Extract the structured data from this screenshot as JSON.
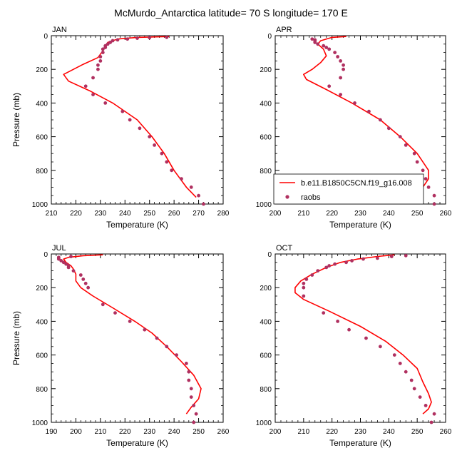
{
  "figure": {
    "title": "McMurdo_Antarctica  latitude= 70 S longitude= 170 E"
  },
  "legend": {
    "model_label": "b.e11.B1850C5CN.f19_g16.008",
    "obs_label": "raobs",
    "model_color": "#ff0000",
    "obs_color": "#b03060"
  },
  "chart_data": [
    {
      "type": "line",
      "panel": "JAN",
      "xlabel": "Temperature (K)",
      "ylabel": "Pressure (mb)",
      "xlim": [
        210,
        280
      ],
      "ylim": [
        1000,
        0
      ],
      "xticks": [
        210,
        220,
        230,
        240,
        250,
        260,
        270,
        280
      ],
      "yticks": [
        0,
        200,
        400,
        600,
        800,
        1000
      ],
      "series": [
        {
          "kind": "model",
          "points": [
            {
              "x": 258,
              "y": 5
            },
            {
              "x": 245,
              "y": 10
            },
            {
              "x": 237,
              "y": 20
            },
            {
              "x": 233,
              "y": 40
            },
            {
              "x": 232,
              "y": 60
            },
            {
              "x": 231,
              "y": 90
            },
            {
              "x": 229,
              "y": 130
            },
            {
              "x": 223,
              "y": 170
            },
            {
              "x": 219,
              "y": 200
            },
            {
              "x": 215,
              "y": 230
            },
            {
              "x": 217,
              "y": 270
            },
            {
              "x": 226,
              "y": 330
            },
            {
              "x": 235,
              "y": 400
            },
            {
              "x": 245,
              "y": 500
            },
            {
              "x": 251,
              "y": 600
            },
            {
              "x": 256,
              "y": 700
            },
            {
              "x": 260,
              "y": 800
            },
            {
              "x": 265,
              "y": 900
            },
            {
              "x": 269,
              "y": 960
            }
          ]
        },
        {
          "kind": "obs",
          "points": [
            {
              "x": 257,
              "y": 10
            },
            {
              "x": 250,
              "y": 12
            },
            {
              "x": 245,
              "y": 15
            },
            {
              "x": 241,
              "y": 20
            },
            {
              "x": 237,
              "y": 25
            },
            {
              "x": 235,
              "y": 30
            },
            {
              "x": 234,
              "y": 40
            },
            {
              "x": 233,
              "y": 50
            },
            {
              "x": 232,
              "y": 60
            },
            {
              "x": 232,
              "y": 70
            },
            {
              "x": 231,
              "y": 80
            },
            {
              "x": 231,
              "y": 100
            },
            {
              "x": 230,
              "y": 125
            },
            {
              "x": 230,
              "y": 150
            },
            {
              "x": 229,
              "y": 175
            },
            {
              "x": 229,
              "y": 200
            },
            {
              "x": 227,
              "y": 250
            },
            {
              "x": 224,
              "y": 300
            },
            {
              "x": 227,
              "y": 350
            },
            {
              "x": 232,
              "y": 400
            },
            {
              "x": 239,
              "y": 450
            },
            {
              "x": 242,
              "y": 500
            },
            {
              "x": 246,
              "y": 550
            },
            {
              "x": 250,
              "y": 600
            },
            {
              "x": 252,
              "y": 650
            },
            {
              "x": 255,
              "y": 700
            },
            {
              "x": 257,
              "y": 750
            },
            {
              "x": 259,
              "y": 800
            },
            {
              "x": 263,
              "y": 850
            },
            {
              "x": 267,
              "y": 900
            },
            {
              "x": 270,
              "y": 950
            },
            {
              "x": 272,
              "y": 1000
            }
          ]
        }
      ]
    },
    {
      "type": "line",
      "panel": "APR",
      "xlabel": "Temperature (K)",
      "ylabel": "",
      "xlim": [
        200,
        260
      ],
      "ylim": [
        1000,
        0
      ],
      "xticks": [
        200,
        210,
        220,
        230,
        240,
        250,
        260
      ],
      "yticks": [
        0,
        200,
        400,
        600,
        800,
        1000
      ],
      "series": [
        {
          "kind": "model",
          "points": [
            {
              "x": 225,
              "y": 5
            },
            {
              "x": 220,
              "y": 10
            },
            {
              "x": 216,
              "y": 30
            },
            {
              "x": 215,
              "y": 50
            },
            {
              "x": 217,
              "y": 80
            },
            {
              "x": 218,
              "y": 120
            },
            {
              "x": 216,
              "y": 160
            },
            {
              "x": 213,
              "y": 200
            },
            {
              "x": 210,
              "y": 230
            },
            {
              "x": 211,
              "y": 260
            },
            {
              "x": 218,
              "y": 320
            },
            {
              "x": 227,
              "y": 400
            },
            {
              "x": 237,
              "y": 500
            },
            {
              "x": 244,
              "y": 600
            },
            {
              "x": 250,
              "y": 700
            },
            {
              "x": 254,
              "y": 800
            },
            {
              "x": 254,
              "y": 850
            },
            {
              "x": 252,
              "y": 900
            },
            {
              "x": 248,
              "y": 950
            }
          ]
        },
        {
          "kind": "obs",
          "points": [
            {
              "x": 213,
              "y": 20
            },
            {
              "x": 214,
              "y": 25
            },
            {
              "x": 214,
              "y": 30
            },
            {
              "x": 214,
              "y": 40
            },
            {
              "x": 215,
              "y": 50
            },
            {
              "x": 217,
              "y": 60
            },
            {
              "x": 218,
              "y": 70
            },
            {
              "x": 219,
              "y": 80
            },
            {
              "x": 221,
              "y": 100
            },
            {
              "x": 222,
              "y": 125
            },
            {
              "x": 223,
              "y": 150
            },
            {
              "x": 224,
              "y": 175
            },
            {
              "x": 224,
              "y": 200
            },
            {
              "x": 223,
              "y": 250
            },
            {
              "x": 219,
              "y": 300
            },
            {
              "x": 223,
              "y": 350
            },
            {
              "x": 228,
              "y": 400
            },
            {
              "x": 233,
              "y": 450
            },
            {
              "x": 237,
              "y": 500
            },
            {
              "x": 240,
              "y": 550
            },
            {
              "x": 244,
              "y": 600
            },
            {
              "x": 246,
              "y": 650
            },
            {
              "x": 249,
              "y": 700
            },
            {
              "x": 250,
              "y": 750
            },
            {
              "x": 252,
              "y": 800
            },
            {
              "x": 253,
              "y": 850
            },
            {
              "x": 254,
              "y": 900
            },
            {
              "x": 256,
              "y": 950
            },
            {
              "x": 256,
              "y": 1000
            }
          ]
        }
      ]
    },
    {
      "type": "line",
      "panel": "JUL",
      "xlabel": "Temperature (K)",
      "ylabel": "Pressure (mb)",
      "xlim": [
        190,
        260
      ],
      "ylim": [
        1000,
        0
      ],
      "xticks": [
        190,
        200,
        210,
        220,
        230,
        240,
        250,
        260
      ],
      "yticks": [
        0,
        200,
        400,
        600,
        800,
        1000
      ],
      "series": [
        {
          "kind": "model",
          "points": [
            {
              "x": 211,
              "y": 5
            },
            {
              "x": 203,
              "y": 10
            },
            {
              "x": 197,
              "y": 20
            },
            {
              "x": 195,
              "y": 30
            },
            {
              "x": 196,
              "y": 50
            },
            {
              "x": 198,
              "y": 70
            },
            {
              "x": 199,
              "y": 90
            },
            {
              "x": 200,
              "y": 120
            },
            {
              "x": 200,
              "y": 160
            },
            {
              "x": 202,
              "y": 200
            },
            {
              "x": 207,
              "y": 250
            },
            {
              "x": 215,
              "y": 320
            },
            {
              "x": 224,
              "y": 400
            },
            {
              "x": 231,
              "y": 470
            },
            {
              "x": 237,
              "y": 550
            },
            {
              "x": 243,
              "y": 640
            },
            {
              "x": 248,
              "y": 720
            },
            {
              "x": 251,
              "y": 800
            },
            {
              "x": 250,
              "y": 860
            },
            {
              "x": 247,
              "y": 910
            },
            {
              "x": 245,
              "y": 950
            }
          ]
        },
        {
          "kind": "obs",
          "points": [
            {
              "x": 198,
              "y": 15
            },
            {
              "x": 193,
              "y": 20
            },
            {
              "x": 193,
              "y": 25
            },
            {
              "x": 193,
              "y": 30
            },
            {
              "x": 194,
              "y": 40
            },
            {
              "x": 195,
              "y": 50
            },
            {
              "x": 196,
              "y": 60
            },
            {
              "x": 197,
              "y": 70
            },
            {
              "x": 197,
              "y": 80
            },
            {
              "x": 199,
              "y": 100
            },
            {
              "x": 202,
              "y": 125
            },
            {
              "x": 203,
              "y": 150
            },
            {
              "x": 204,
              "y": 175
            },
            {
              "x": 205,
              "y": 200
            },
            {
              "x": 211,
              "y": 300
            },
            {
              "x": 216,
              "y": 350
            },
            {
              "x": 222,
              "y": 400
            },
            {
              "x": 228,
              "y": 450
            },
            {
              "x": 233,
              "y": 500
            },
            {
              "x": 237,
              "y": 550
            },
            {
              "x": 241,
              "y": 600
            },
            {
              "x": 245,
              "y": 650
            },
            {
              "x": 246,
              "y": 700
            },
            {
              "x": 246,
              "y": 750
            },
            {
              "x": 247,
              "y": 800
            },
            {
              "x": 247,
              "y": 850
            },
            {
              "x": 248,
              "y": 900
            },
            {
              "x": 249,
              "y": 950
            },
            {
              "x": 248,
              "y": 1000
            }
          ]
        }
      ]
    },
    {
      "type": "line",
      "panel": "OCT",
      "xlabel": "Temperature (K)",
      "ylabel": "",
      "xlim": [
        200,
        260
      ],
      "ylim": [
        1000,
        0
      ],
      "xticks": [
        200,
        210,
        220,
        230,
        240,
        250,
        260
      ],
      "yticks": [
        0,
        200,
        400,
        600,
        800,
        1000
      ],
      "series": [
        {
          "kind": "model",
          "points": [
            {
              "x": 242,
              "y": 5
            },
            {
              "x": 236,
              "y": 15
            },
            {
              "x": 229,
              "y": 30
            },
            {
              "x": 223,
              "y": 50
            },
            {
              "x": 218,
              "y": 80
            },
            {
              "x": 213,
              "y": 120
            },
            {
              "x": 209,
              "y": 160
            },
            {
              "x": 207,
              "y": 200
            },
            {
              "x": 207,
              "y": 230
            },
            {
              "x": 210,
              "y": 270
            },
            {
              "x": 219,
              "y": 340
            },
            {
              "x": 230,
              "y": 430
            },
            {
              "x": 239,
              "y": 520
            },
            {
              "x": 245,
              "y": 600
            },
            {
              "x": 250,
              "y": 680
            },
            {
              "x": 252,
              "y": 760
            },
            {
              "x": 254,
              "y": 830
            },
            {
              "x": 255,
              "y": 880
            },
            {
              "x": 254,
              "y": 920
            },
            {
              "x": 252,
              "y": 950
            }
          ]
        },
        {
          "kind": "obs",
          "points": [
            {
              "x": 246,
              "y": 10
            },
            {
              "x": 241,
              "y": 15
            },
            {
              "x": 236,
              "y": 25
            },
            {
              "x": 231,
              "y": 30
            },
            {
              "x": 227,
              "y": 40
            },
            {
              "x": 225,
              "y": 50
            },
            {
              "x": 221,
              "y": 60
            },
            {
              "x": 219,
              "y": 70
            },
            {
              "x": 218,
              "y": 80
            },
            {
              "x": 215,
              "y": 100
            },
            {
              "x": 213,
              "y": 125
            },
            {
              "x": 211,
              "y": 150
            },
            {
              "x": 210,
              "y": 175
            },
            {
              "x": 210,
              "y": 200
            },
            {
              "x": 210,
              "y": 250
            },
            {
              "x": 217,
              "y": 350
            },
            {
              "x": 222,
              "y": 400
            },
            {
              "x": 226,
              "y": 450
            },
            {
              "x": 232,
              "y": 500
            },
            {
              "x": 237,
              "y": 550
            },
            {
              "x": 242,
              "y": 600
            },
            {
              "x": 244,
              "y": 650
            },
            {
              "x": 246,
              "y": 700
            },
            {
              "x": 248,
              "y": 750
            },
            {
              "x": 249,
              "y": 800
            },
            {
              "x": 251,
              "y": 850
            },
            {
              "x": 253,
              "y": 900
            },
            {
              "x": 256,
              "y": 950
            },
            {
              "x": 255,
              "y": 1000
            }
          ]
        }
      ]
    }
  ]
}
